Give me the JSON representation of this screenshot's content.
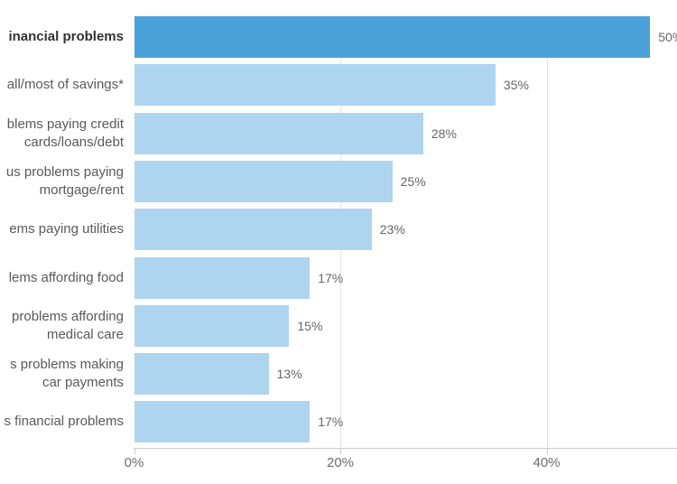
{
  "chart_data": {
    "type": "bar",
    "orientation": "horizontal",
    "title": "",
    "xlabel": "",
    "ylabel": "",
    "xlim": [
      0,
      52.6
    ],
    "grid": "vertical-gridlines-at-20-and-40",
    "legend": "none",
    "note_labels_cropped": "category labels are cut off at the left edge of the screenshot; strings below are exactly the visible text",
    "categories": [
      "inancial problems",
      "all/most of savings*",
      "blems paying credit\ncards/loans/debt",
      "us problems paying\nmortgage/rent",
      "ems paying utilities",
      "lems affording food",
      "problems affording\nmedical care",
      "s problems making\ncar payments",
      "s financial problems"
    ],
    "values": [
      50,
      35,
      28,
      25,
      23,
      17,
      15,
      13,
      17
    ],
    "rows": [
      {
        "label": "inancial problems",
        "value": 50,
        "value_label": "50%",
        "highlight": true
      },
      {
        "label": "all/most of savings*",
        "value": 35,
        "value_label": "35%",
        "highlight": false
      },
      {
        "label": "blems paying credit\ncards/loans/debt",
        "value": 28,
        "value_label": "28%",
        "highlight": false
      },
      {
        "label": "us problems paying\nmortgage/rent",
        "value": 25,
        "value_label": "25%",
        "highlight": false
      },
      {
        "label": "ems paying utilities",
        "value": 23,
        "value_label": "23%",
        "highlight": false
      },
      {
        "label": "lems affording food",
        "value": 17,
        "value_label": "17%",
        "highlight": false
      },
      {
        "label": "problems affording\nmedical care",
        "value": 15,
        "value_label": "15%",
        "highlight": false
      },
      {
        "label": "s problems making\ncar payments",
        "value": 13,
        "value_label": "13%",
        "highlight": false
      },
      {
        "label": "s financial problems",
        "value": 17,
        "value_label": "17%",
        "highlight": false
      }
    ],
    "x_ticks": [
      {
        "label": "0%",
        "pct": 0
      },
      {
        "label": "20%",
        "pct": 20
      },
      {
        "label": "40%",
        "pct": 40
      }
    ],
    "gridlines_pct": [
      20,
      40
    ],
    "colors": {
      "bar_highlight": "#4aa2d8",
      "bar": "#aed5f0",
      "gridline": "#e2e2e2",
      "axis": "#cccccc",
      "label": "#595959",
      "label_highlight": "#323232",
      "value_label": "#666666",
      "tick_label": "#6e6e6e"
    }
  }
}
